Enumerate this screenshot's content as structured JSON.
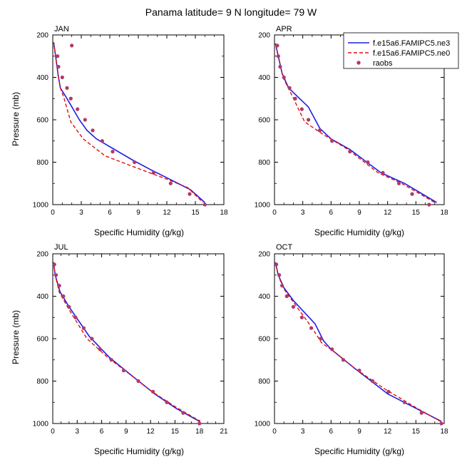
{
  "title": "Panama  latitude= 9 N longitude= 79 W",
  "legend": {
    "position": "top-right",
    "entries": [
      {
        "label": "f.e15a6.FAMIPC5.ne3",
        "color": "#1f1fe0",
        "style": "solid"
      },
      {
        "label": "f.e15a6.FAMIPC5.ne0",
        "color": "#e01010",
        "style": "dashed"
      },
      {
        "label": "raobs",
        "color": "#b03a6a",
        "style": "marker"
      }
    ]
  },
  "chart_data": [
    {
      "type": "line",
      "panel": "JAN",
      "xlabel": "Specific Humidity (g/kg)",
      "ylabel": "Pressure (mb)",
      "xlim": [
        0,
        18
      ],
      "ylim": [
        200,
        1000
      ],
      "y_reversed": true,
      "xticks": [
        0,
        3,
        6,
        9,
        12,
        15,
        18
      ],
      "yticks": [
        200,
        400,
        600,
        800,
        1000
      ],
      "grid": false,
      "series": [
        {
          "name": "f.e15a6.FAMIPC5.ne3",
          "color": "#1f1fe0",
          "style": "solid",
          "points": [
            [
              0.1,
              235
            ],
            [
              0.3,
              300
            ],
            [
              0.6,
              400
            ],
            [
              0.8,
              450
            ],
            [
              1.5,
              500
            ],
            [
              2.8,
              600
            ],
            [
              3.6,
              650
            ],
            [
              4.6,
              690
            ],
            [
              8.4,
              790
            ],
            [
              10.5,
              840
            ],
            [
              12.3,
              880
            ],
            [
              14.5,
              930
            ],
            [
              16.0,
              990
            ]
          ]
        },
        {
          "name": "f.e15a6.FAMIPC5.ne0",
          "color": "#e01010",
          "style": "dashed",
          "points": [
            [
              0.1,
              235
            ],
            [
              0.3,
              300
            ],
            [
              0.6,
              400
            ],
            [
              0.8,
              450
            ],
            [
              1.2,
              500
            ],
            [
              1.9,
              610
            ],
            [
              3.2,
              690
            ],
            [
              5.5,
              770
            ],
            [
              9.0,
              830
            ],
            [
              12.0,
              880
            ],
            [
              14.2,
              920
            ],
            [
              15.8,
              990
            ]
          ]
        },
        {
          "name": "raobs",
          "color": "#b03a6a",
          "style": "marker",
          "points": [
            [
              2.0,
              250
            ],
            [
              0.5,
              300
            ],
            [
              0.6,
              350
            ],
            [
              1.0,
              400
            ],
            [
              1.5,
              450
            ],
            [
              1.9,
              500
            ],
            [
              2.6,
              550
            ],
            [
              3.4,
              600
            ],
            [
              4.2,
              650
            ],
            [
              5.2,
              700
            ],
            [
              6.3,
              750
            ],
            [
              8.6,
              800
            ],
            [
              10.6,
              850
            ],
            [
              12.4,
              900
            ],
            [
              14.4,
              950
            ],
            [
              16.0,
              1000
            ]
          ]
        }
      ]
    },
    {
      "type": "line",
      "panel": "APR",
      "xlabel": "Specific Humidity (g/kg)",
      "ylabel": "",
      "xlim": [
        0,
        18
      ],
      "ylim": [
        200,
        1000
      ],
      "y_reversed": true,
      "xticks": [
        0,
        3,
        6,
        9,
        12,
        15,
        18
      ],
      "yticks": [
        200,
        400,
        600,
        800,
        1000
      ],
      "grid": false,
      "series": [
        {
          "name": "f.e15a6.FAMIPC5.ne3",
          "color": "#1f1fe0",
          "style": "solid",
          "points": [
            [
              0.1,
              240
            ],
            [
              0.4,
              300
            ],
            [
              0.8,
              380
            ],
            [
              1.5,
              450
            ],
            [
              3.6,
              540
            ],
            [
              4.8,
              640
            ],
            [
              6.0,
              690
            ],
            [
              8.0,
              740
            ],
            [
              11.3,
              850
            ],
            [
              13.8,
              900
            ],
            [
              17.2,
              990
            ]
          ]
        },
        {
          "name": "f.e15a6.FAMIPC5.ne0",
          "color": "#e01010",
          "style": "dashed",
          "points": [
            [
              0.1,
              240
            ],
            [
              0.4,
              300
            ],
            [
              0.9,
              400
            ],
            [
              1.8,
              480
            ],
            [
              3.2,
              610
            ],
            [
              5.2,
              670
            ],
            [
              7.8,
              740
            ],
            [
              11.0,
              850
            ],
            [
              13.5,
              900
            ],
            [
              17.0,
              990
            ]
          ]
        },
        {
          "name": "raobs",
          "color": "#b03a6a",
          "style": "marker",
          "points": [
            [
              0.3,
              250
            ],
            [
              0.4,
              300
            ],
            [
              0.6,
              350
            ],
            [
              1.0,
              400
            ],
            [
              1.6,
              450
            ],
            [
              2.2,
              500
            ],
            [
              2.9,
              550
            ],
            [
              3.6,
              600
            ],
            [
              4.8,
              650
            ],
            [
              6.1,
              700
            ],
            [
              8.0,
              750
            ],
            [
              9.9,
              800
            ],
            [
              11.5,
              850
            ],
            [
              13.2,
              900
            ],
            [
              14.6,
              950
            ],
            [
              16.4,
              1000
            ]
          ]
        }
      ]
    },
    {
      "type": "line",
      "panel": "JUL",
      "xlabel": "Specific Humidity (g/kg)",
      "ylabel": "Pressure (mb)",
      "xlim": [
        0,
        21
      ],
      "ylim": [
        200,
        1000
      ],
      "y_reversed": true,
      "xticks": [
        0,
        3,
        6,
        9,
        12,
        15,
        18,
        21
      ],
      "yticks": [
        200,
        400,
        600,
        800,
        1000
      ],
      "grid": false,
      "series": [
        {
          "name": "f.e15a6.FAMIPC5.ne3",
          "color": "#1f1fe0",
          "style": "solid",
          "points": [
            [
              0.1,
              240
            ],
            [
              0.3,
              300
            ],
            [
              0.9,
              380
            ],
            [
              2.0,
              450
            ],
            [
              4.5,
              590
            ],
            [
              7.0,
              690
            ],
            [
              10.2,
              790
            ],
            [
              12.5,
              860
            ],
            [
              15.2,
              930
            ],
            [
              18.0,
              990
            ]
          ]
        },
        {
          "name": "f.e15a6.FAMIPC5.ne0",
          "color": "#e01010",
          "style": "dashed",
          "points": [
            [
              0.1,
              240
            ],
            [
              0.3,
              300
            ],
            [
              0.8,
              380
            ],
            [
              1.8,
              450
            ],
            [
              4.2,
              600
            ],
            [
              6.8,
              690
            ],
            [
              10.2,
              790
            ],
            [
              12.2,
              850
            ],
            [
              15.0,
              920
            ],
            [
              18.1,
              990
            ]
          ]
        },
        {
          "name": "raobs",
          "color": "#b03a6a",
          "style": "marker",
          "points": [
            [
              0.2,
              250
            ],
            [
              0.4,
              300
            ],
            [
              0.8,
              350
            ],
            [
              1.3,
              400
            ],
            [
              2.0,
              450
            ],
            [
              2.8,
              500
            ],
            [
              3.8,
              550
            ],
            [
              4.8,
              600
            ],
            [
              5.8,
              650
            ],
            [
              7.2,
              700
            ],
            [
              8.7,
              750
            ],
            [
              10.5,
              800
            ],
            [
              12.3,
              850
            ],
            [
              14.0,
              900
            ],
            [
              16.0,
              950
            ],
            [
              18.0,
              1000
            ]
          ]
        }
      ]
    },
    {
      "type": "line",
      "panel": "OCT",
      "xlabel": "Specific Humidity (g/kg)",
      "ylabel": "",
      "xlim": [
        0,
        18
      ],
      "ylim": [
        200,
        1000
      ],
      "y_reversed": true,
      "xticks": [
        0,
        3,
        6,
        9,
        12,
        15,
        18
      ],
      "yticks": [
        200,
        400,
        600,
        800,
        1000
      ],
      "grid": false,
      "series": [
        {
          "name": "f.e15a6.FAMIPC5.ne3",
          "color": "#1f1fe0",
          "style": "solid",
          "points": [
            [
              0.1,
              240
            ],
            [
              0.4,
              300
            ],
            [
              1.0,
              360
            ],
            [
              2.0,
              420
            ],
            [
              4.3,
              530
            ],
            [
              5.2,
              610
            ],
            [
              6.0,
              650
            ],
            [
              8.5,
              740
            ],
            [
              12.0,
              860
            ],
            [
              15.5,
              940
            ],
            [
              17.7,
              990
            ]
          ]
        },
        {
          "name": "f.e15a6.FAMIPC5.ne0",
          "color": "#e01010",
          "style": "dashed",
          "points": [
            [
              0.1,
              240
            ],
            [
              0.4,
              300
            ],
            [
              0.9,
              360
            ],
            [
              2.2,
              440
            ],
            [
              4.0,
              550
            ],
            [
              5.0,
              620
            ],
            [
              6.3,
              660
            ],
            [
              8.5,
              740
            ],
            [
              11.8,
              840
            ],
            [
              15.2,
              930
            ],
            [
              17.6,
              990
            ]
          ]
        },
        {
          "name": "raobs",
          "color": "#b03a6a",
          "style": "marker",
          "points": [
            [
              0.2,
              250
            ],
            [
              0.5,
              300
            ],
            [
              0.8,
              350
            ],
            [
              1.3,
              400
            ],
            [
              2.0,
              450
            ],
            [
              2.9,
              500
            ],
            [
              3.9,
              550
            ],
            [
              4.9,
              600
            ],
            [
              6.1,
              650
            ],
            [
              7.3,
              700
            ],
            [
              9.0,
              750
            ],
            [
              10.4,
              800
            ],
            [
              12.1,
              850
            ],
            [
              13.8,
              900
            ],
            [
              15.6,
              950
            ],
            [
              17.7,
              1000
            ]
          ]
        }
      ]
    }
  ]
}
